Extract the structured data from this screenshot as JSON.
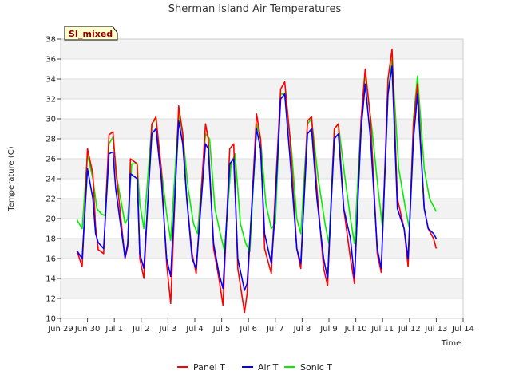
{
  "chart_data": {
    "type": "line",
    "title": "Sherman Island Air Temperatures",
    "xlabel": "Time",
    "ylabel": "Temperature (C)",
    "badge": "SI_mixed",
    "ylim": [
      10,
      38
    ],
    "xlim": [
      0,
      15
    ],
    "yticks": [
      10,
      12,
      14,
      16,
      18,
      20,
      22,
      24,
      26,
      28,
      30,
      32,
      34,
      36,
      38
    ],
    "xticks": [
      {
        "pos": 0,
        "label": "Jun 29"
      },
      {
        "pos": 1,
        "label": "Jun 30"
      },
      {
        "pos": 2,
        "label": "Jul 1"
      },
      {
        "pos": 3,
        "label": "Jul 2"
      },
      {
        "pos": 4,
        "label": "Jul 3"
      },
      {
        "pos": 5,
        "label": "Jul 4"
      },
      {
        "pos": 6,
        "label": "Jul 5"
      },
      {
        "pos": 7,
        "label": "Jul 6"
      },
      {
        "pos": 8,
        "label": "Jul 7"
      },
      {
        "pos": 9,
        "label": "Jul 8"
      },
      {
        "pos": 10,
        "label": "Jul 9"
      },
      {
        "pos": 11,
        "label": "Jul 10"
      },
      {
        "pos": 12,
        "label": "Jul 11"
      },
      {
        "pos": 13,
        "label": "Jul 12"
      },
      {
        "pos": 14,
        "label": "Jul 13"
      },
      {
        "pos": 15,
        "label": "Jul 14"
      }
    ],
    "grid": "horizontal bands",
    "legend_position": "bottom-center",
    "series": [
      {
        "name": "Panel T",
        "color": "#ff0000",
        "x": [
          0.6,
          0.8,
          1.0,
          1.2,
          1.3,
          1.4,
          1.6,
          1.8,
          1.95,
          2.05,
          2.4,
          2.5,
          2.6,
          2.85,
          2.95,
          3.1,
          3.4,
          3.55,
          3.75,
          3.95,
          4.1,
          4.4,
          4.55,
          4.7,
          4.9,
          5.05,
          5.4,
          5.5,
          5.7,
          5.9,
          6.05,
          6.3,
          6.45,
          6.6,
          6.85,
          6.95,
          7.3,
          7.45,
          7.6,
          7.85,
          7.95,
          8.2,
          8.35,
          8.55,
          8.8,
          8.95,
          9.2,
          9.35,
          9.55,
          9.8,
          9.95,
          10.2,
          10.35,
          10.55,
          10.8,
          10.95,
          11.2,
          11.35,
          11.55,
          11.8,
          11.95,
          12.2,
          12.35,
          12.55,
          12.8,
          12.95,
          13.15,
          13.3,
          13.55,
          13.7,
          13.9,
          14.0
        ],
        "y": [
          16.8,
          15.2,
          27.0,
          24.5,
          19.2,
          16.9,
          16.5,
          28.4,
          28.7,
          25.0,
          16.0,
          17.2,
          26.0,
          25.5,
          16.0,
          14.0,
          29.5,
          30.2,
          25.0,
          15.5,
          11.5,
          31.3,
          28.5,
          22.0,
          16.5,
          14.5,
          29.5,
          28.0,
          17.0,
          14.0,
          11.3,
          27.0,
          27.5,
          15.0,
          10.6,
          12.5,
          30.5,
          28.0,
          17.0,
          14.5,
          20.0,
          33.0,
          33.7,
          28.0,
          17.0,
          15.0,
          29.8,
          30.2,
          23.0,
          15.0,
          13.3,
          29.0,
          29.5,
          21.0,
          16.0,
          13.5,
          30.0,
          35.0,
          30.0,
          16.5,
          14.6,
          34.0,
          37.0,
          22.0,
          19.0,
          15.2,
          29.5,
          33.5,
          21.0,
          19.0,
          18.0,
          17.0
        ]
      },
      {
        "name": "Air T",
        "color": "#0000ff",
        "x": [
          0.6,
          0.8,
          1.0,
          1.2,
          1.3,
          1.4,
          1.6,
          1.8,
          1.95,
          2.05,
          2.4,
          2.5,
          2.6,
          2.85,
          2.95,
          3.1,
          3.4,
          3.55,
          3.75,
          3.95,
          4.1,
          4.4,
          4.55,
          4.7,
          4.9,
          5.05,
          5.4,
          5.5,
          5.7,
          5.9,
          6.05,
          6.3,
          6.45,
          6.6,
          6.85,
          6.95,
          7.3,
          7.45,
          7.6,
          7.85,
          7.95,
          8.2,
          8.35,
          8.55,
          8.8,
          8.95,
          9.2,
          9.35,
          9.55,
          9.8,
          9.95,
          10.2,
          10.35,
          10.55,
          10.8,
          10.95,
          11.2,
          11.35,
          11.55,
          11.8,
          11.95,
          12.2,
          12.35,
          12.55,
          12.8,
          12.95,
          13.15,
          13.3,
          13.55,
          13.7,
          13.9,
          14.0
        ],
        "y": [
          16.8,
          16.0,
          25.0,
          22.0,
          18.5,
          17.6,
          17.0,
          26.5,
          26.7,
          23.0,
          16.1,
          17.5,
          24.5,
          24.0,
          16.5,
          15.0,
          28.5,
          29.0,
          24.0,
          16.0,
          14.2,
          29.8,
          27.5,
          22.0,
          16.0,
          15.0,
          27.5,
          27.0,
          17.5,
          14.5,
          13.0,
          25.5,
          26.0,
          16.0,
          12.8,
          13.5,
          29.0,
          27.0,
          18.5,
          15.5,
          19.0,
          32.0,
          32.5,
          26.0,
          17.0,
          15.5,
          28.5,
          29.0,
          22.0,
          16.0,
          14.0,
          28.0,
          28.5,
          21.0,
          18.0,
          14.0,
          29.0,
          33.5,
          28.0,
          17.0,
          15.0,
          32.5,
          35.3,
          21.0,
          19.0,
          16.0,
          28.0,
          32.5,
          21.0,
          19.0,
          18.5,
          18.0
        ]
      },
      {
        "name": "Sonic T",
        "color": "#00ee00",
        "x": [
          0.6,
          0.8,
          1.0,
          1.2,
          1.35,
          1.5,
          1.65,
          1.8,
          1.95,
          2.1,
          2.4,
          2.5,
          2.65,
          2.85,
          2.95,
          3.1,
          3.4,
          3.55,
          3.75,
          3.95,
          4.1,
          4.4,
          4.55,
          4.75,
          4.95,
          5.1,
          5.4,
          5.55,
          5.75,
          5.95,
          6.1,
          6.35,
          6.5,
          6.7,
          6.9,
          7.05,
          7.3,
          7.45,
          7.65,
          7.85,
          8.0,
          8.2,
          8.35,
          8.6,
          8.8,
          8.95,
          9.2,
          9.35,
          9.6,
          9.85,
          10.0,
          10.2,
          10.35,
          10.6,
          10.8,
          10.95,
          11.2,
          11.35,
          11.6,
          11.85,
          12.0,
          12.2,
          12.35,
          12.6,
          12.85,
          13.0,
          13.15,
          13.3,
          13.55,
          13.75,
          14.0
        ],
        "y": [
          19.9,
          19.0,
          26.5,
          24.0,
          21.0,
          20.5,
          20.3,
          27.5,
          28.2,
          24.0,
          19.5,
          20.0,
          25.5,
          25.5,
          21.5,
          19.0,
          29.5,
          30.0,
          25.0,
          20.5,
          17.8,
          30.5,
          28.5,
          23.0,
          19.5,
          18.5,
          28.5,
          28.0,
          21.0,
          18.5,
          16.8,
          25.5,
          26.5,
          19.5,
          17.5,
          16.7,
          29.5,
          28.0,
          21.5,
          19.0,
          19.5,
          32.5,
          32.5,
          27.0,
          20.0,
          18.5,
          29.5,
          30.0,
          24.0,
          19.5,
          17.5,
          29.0,
          29.5,
          24.0,
          20.0,
          17.5,
          30.0,
          34.5,
          29.0,
          22.5,
          19.0,
          32.5,
          36.0,
          25.0,
          21.0,
          19.0,
          30.0,
          34.3,
          25.0,
          22.0,
          20.7
        ]
      }
    ]
  }
}
